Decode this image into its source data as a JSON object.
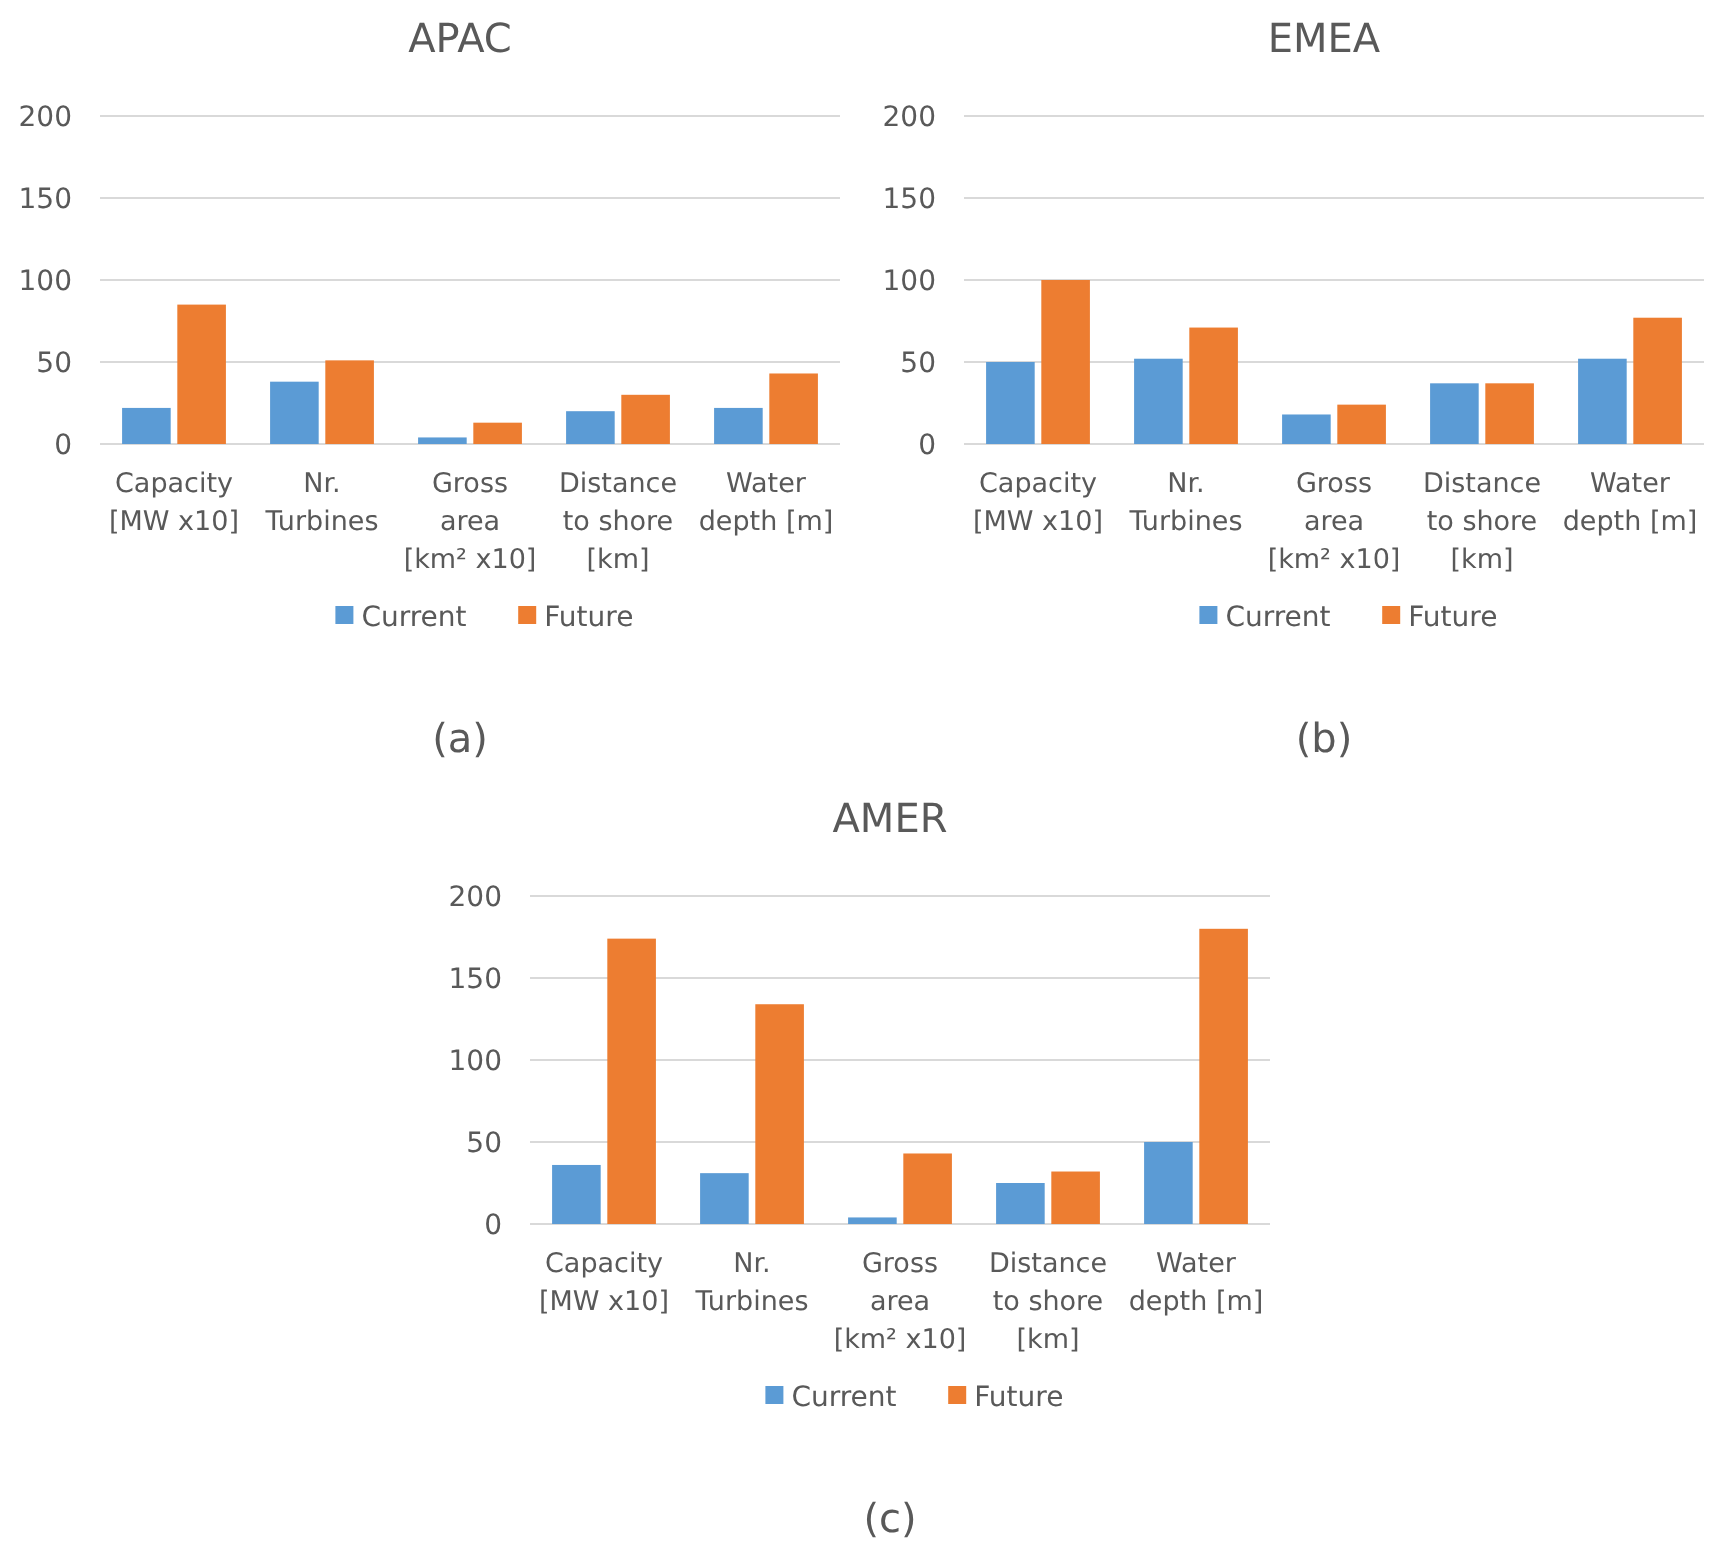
{
  "chart_data": [
    {
      "type": "bar",
      "title": "APAC",
      "categories": [
        "Capacity\n[MW x10]",
        "Nr.\nTurbines",
        "Gross\narea\n[km² x10]",
        "Distance\nto shore\n[km]",
        "Water\ndepth [m]"
      ],
      "series": [
        {
          "name": "Current",
          "color": "#5b9bd5",
          "values": [
            22,
            38,
            4,
            20,
            22
          ]
        },
        {
          "name": "Future",
          "color": "#ed7d31",
          "values": [
            85,
            51,
            13,
            30,
            43
          ]
        }
      ],
      "ylim": [
        0,
        200
      ],
      "yticks": [
        0,
        50,
        100,
        150,
        200
      ],
      "grid": "y",
      "legend": "bottom",
      "annotations": [
        "(a)"
      ]
    },
    {
      "type": "bar",
      "title": "EMEA",
      "categories": [
        "Capacity\n[MW x10]",
        "Nr.\nTurbines",
        "Gross\narea\n[km² x10]",
        "Distance\nto shore\n[km]",
        "Water\ndepth [m]"
      ],
      "series": [
        {
          "name": "Current",
          "color": "#5b9bd5",
          "values": [
            50,
            52,
            18,
            37,
            52
          ]
        },
        {
          "name": "Future",
          "color": "#ed7d31",
          "values": [
            100,
            71,
            24,
            37,
            77
          ]
        }
      ],
      "ylim": [
        0,
        200
      ],
      "yticks": [
        0,
        50,
        100,
        150,
        200
      ],
      "grid": "y",
      "legend": "bottom",
      "annotations": [
        "(b)"
      ]
    },
    {
      "type": "bar",
      "title": "AMER",
      "categories": [
        "Capacity\n[MW x10]",
        "Nr.\nTurbines",
        "Gross\narea\n[km² x10]",
        "Distance\nto shore\n[km]",
        "Water\ndepth [m]"
      ],
      "series": [
        {
          "name": "Current",
          "color": "#5b9bd5",
          "values": [
            36,
            31,
            4,
            25,
            50
          ]
        },
        {
          "name": "Future",
          "color": "#ed7d31",
          "values": [
            174,
            134,
            43,
            32,
            180
          ]
        }
      ],
      "ylim": [
        0,
        200
      ],
      "yticks": [
        0,
        50,
        100,
        150,
        200
      ],
      "grid": "y",
      "legend": "bottom",
      "annotations": [
        "(c)"
      ]
    }
  ]
}
